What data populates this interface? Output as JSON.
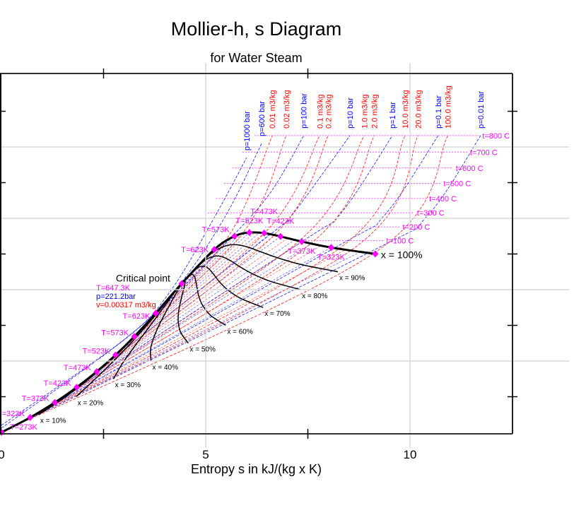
{
  "chart_data": {
    "type": "line",
    "title": "Mollier-h, s Diagram",
    "subtitle": "for Water Steam",
    "xlabel": "Entropy s in kJ/(kg x K)",
    "ylabel": "",
    "xlim": [
      0,
      12.5
    ],
    "ylim": [
      0,
      5050
    ],
    "xticks": [
      "0",
      "5",
      "10"
    ],
    "xtick_values": [
      0,
      5,
      10
    ],
    "grid": true,
    "colors": {
      "saturation": "#000000",
      "marker": "#ff00ff",
      "isobar": "#0000ff",
      "isochore": "#ff0000",
      "isotherm": "#ff00ff",
      "quality": "#000000"
    },
    "saturated_liquid": [
      {
        "label": "T=273K",
        "s": 0.0,
        "h": 0
      },
      {
        "label": "T=323K",
        "s": 0.704,
        "h": 209
      },
      {
        "label": "T=373K",
        "s": 1.307,
        "h": 419
      },
      {
        "label": "T=423K",
        "s": 1.842,
        "h": 632
      },
      {
        "label": "T=473K",
        "s": 2.331,
        "h": 852
      },
      {
        "label": "T=523K",
        "s": 2.793,
        "h": 1085
      },
      {
        "label": "T=573K",
        "s": 3.253,
        "h": 1344
      },
      {
        "label": "T=623K",
        "s": 3.778,
        "h": 1671
      }
    ],
    "saturated_vapor": [
      {
        "label": "",
        "s": 9.15,
        "h": 2501
      },
      {
        "label": "T=323K",
        "s": 8.07,
        "h": 2591
      },
      {
        "label": "T=373K",
        "s": 7.35,
        "h": 2675
      },
      {
        "label": "T=423K",
        "s": 6.83,
        "h": 2746
      },
      {
        "label": "T=473K",
        "s": 6.43,
        "h": 2793
      },
      {
        "label": "T=523K",
        "s": 6.07,
        "h": 2801
      },
      {
        "label": "T=573K",
        "s": 5.703,
        "h": 2749
      },
      {
        "label": "T=623K",
        "s": 5.21,
        "h": 2563
      }
    ],
    "critical_point": {
      "label": "Critical point",
      "T": "T=647.3K",
      "p": "p=221.2bar",
      "v": "v=0.00317 m3/kg",
      "s": 4.41,
      "h": 2084
    },
    "vapor_line_label": "x = 100%",
    "quality_lines": [
      {
        "label": "x = 10%",
        "x": 0.1
      },
      {
        "label": "x = 20%",
        "x": 0.2
      },
      {
        "label": "x = 30%",
        "x": 0.3
      },
      {
        "label": "x = 40%",
        "x": 0.4
      },
      {
        "label": "x = 50%",
        "x": 0.5
      },
      {
        "label": "x = 60%",
        "x": 0.6
      },
      {
        "label": "x = 70%",
        "x": 0.7
      },
      {
        "label": "x = 80%",
        "x": 0.8
      },
      {
        "label": "x = 90%",
        "x": 0.9
      }
    ],
    "isobars": [
      {
        "label": "p=1000 bar",
        "points": [
          [
            0.0,
            100
          ],
          [
            3.0,
            1300
          ],
          [
            4.1,
            1950
          ],
          [
            5.2,
            3000
          ],
          [
            6.0,
            3850
          ]
        ]
      },
      {
        "label": "p=600 bar",
        "points": [
          [
            0.0,
            60
          ],
          [
            3.1,
            1340
          ],
          [
            4.4,
            2100
          ],
          [
            5.5,
            3050
          ],
          [
            6.37,
            4050
          ]
        ]
      },
      {
        "label": "p=100 bar",
        "points": [
          [
            3.36,
            1408
          ],
          [
            5.614,
            2725
          ],
          [
            6.6,
            3374
          ],
          [
            7.4,
            4160
          ]
        ]
      },
      {
        "label": "p=10 bar",
        "points": [
          [
            2.138,
            763
          ],
          [
            6.585,
            2777
          ],
          [
            7.12,
            3051
          ],
          [
            8.53,
            4160
          ]
        ]
      },
      {
        "label": "p=1 bar",
        "points": [
          [
            1.303,
            417
          ],
          [
            7.36,
            2675
          ],
          [
            8.31,
            3072
          ],
          [
            9.57,
            4160
          ]
        ]
      },
      {
        "label": "p=0.1 bar",
        "points": [
          [
            0.649,
            192
          ],
          [
            8.15,
            2584
          ],
          [
            9.37,
            3040
          ],
          [
            10.69,
            4160
          ]
        ]
      },
      {
        "label": "p=0.01 bar",
        "points": [
          [
            0.106,
            29
          ],
          [
            8.97,
            2513
          ],
          [
            10.43,
            3040
          ],
          [
            11.73,
            4160
          ]
        ]
      }
    ],
    "isochores": [
      {
        "label": "0.01 m3/kg",
        "points": [
          [
            3.253,
            1344
          ],
          [
            5.5,
            2700
          ],
          [
            6.63,
            4160
          ]
        ]
      },
      {
        "label": "0.02 m3/kg",
        "points": [
          [
            2.793,
            1085
          ],
          [
            5.9,
            2790
          ],
          [
            6.97,
            4160
          ]
        ]
      },
      {
        "label": "0.1 m3/kg",
        "points": [
          [
            2.331,
            852
          ],
          [
            6.45,
            2800
          ],
          [
            7.79,
            4160
          ]
        ]
      },
      {
        "label": "0.2 m3/kg",
        "points": [
          [
            2.09,
            740
          ],
          [
            6.7,
            2780
          ],
          [
            8.0,
            4160
          ]
        ]
      },
      {
        "label": "1.0 m3/kg",
        "points": [
          [
            1.53,
            505
          ],
          [
            7.3,
            2690
          ],
          [
            8.88,
            4160
          ]
        ]
      },
      {
        "label": "2.0 m3/kg",
        "points": [
          [
            1.307,
            419
          ],
          [
            7.6,
            2660
          ],
          [
            9.13,
            4160
          ]
        ]
      },
      {
        "label": "10.0 m3/kg",
        "points": [
          [
            0.704,
            209
          ],
          [
            8.3,
            2590
          ],
          [
            9.88,
            4160
          ]
        ]
      },
      {
        "label": "20.0 m3/kg",
        "points": [
          [
            0.57,
            167
          ],
          [
            8.6,
            2570
          ],
          [
            10.2,
            4160
          ]
        ]
      },
      {
        "label": "100.0 m3/kg",
        "points": [
          [
            0.15,
            42
          ],
          [
            9.1,
            2505
          ],
          [
            10.93,
            4160
          ]
        ]
      }
    ],
    "isotherms": [
      {
        "label": "t=800 C",
        "h": 4160,
        "s_range": [
          6.2,
          11.7
        ]
      },
      {
        "label": "t=700 C",
        "h": 3928,
        "s_range": [
          5.9,
          11.4
        ]
      },
      {
        "label": "t=600 C",
        "h": 3705,
        "s_range": [
          5.65,
          11.05
        ]
      },
      {
        "label": "t=500 C",
        "h": 3489,
        "s_range": [
          5.45,
          10.75
        ]
      },
      {
        "label": "t=400 C",
        "h": 3278,
        "s_range": [
          5.25,
          10.4
        ]
      },
      {
        "label": "t=300 C",
        "h": 3077,
        "s_range": [
          5.05,
          10.1
        ]
      },
      {
        "label": "t=200 C",
        "h": 2880,
        "s_range": [
          6.45,
          9.75
        ]
      },
      {
        "label": "t=100 C",
        "h": 2687,
        "s_range": [
          7.3,
          9.35
        ]
      }
    ]
  }
}
